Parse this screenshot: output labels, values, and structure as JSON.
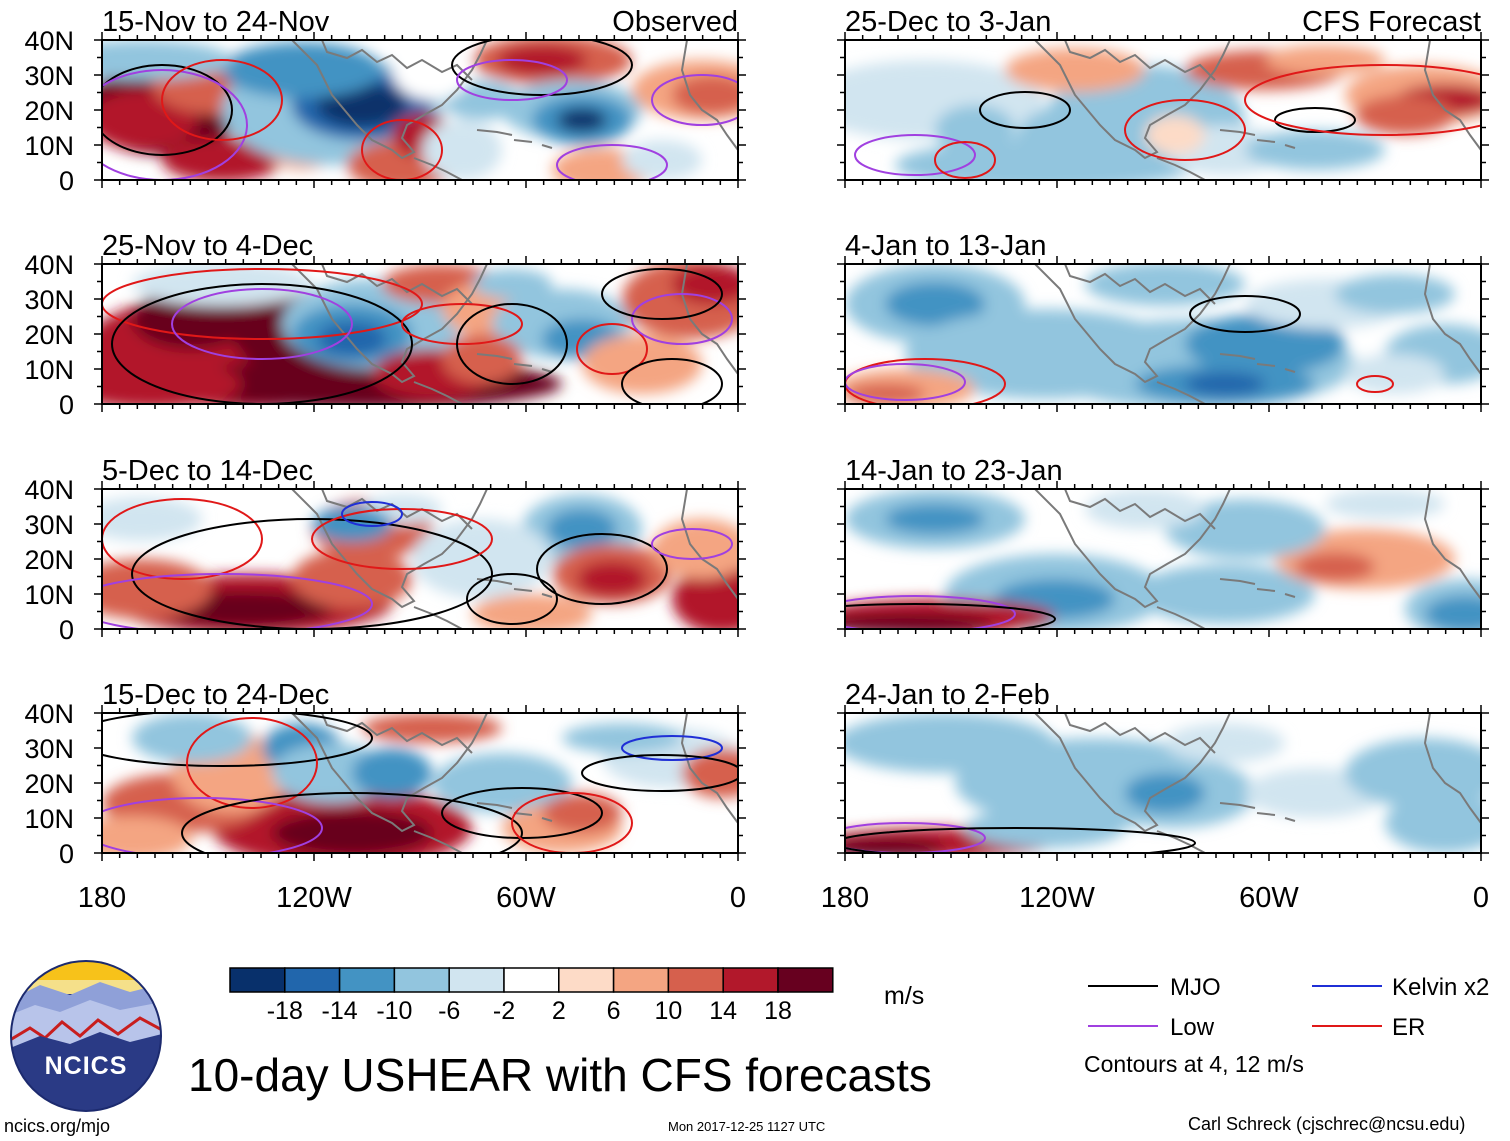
{
  "panels": [
    {
      "title": "15-Nov to 24-Nov",
      "subtitle": "Observed"
    },
    {
      "title": "25-Dec to 3-Jan",
      "subtitle": "CFS Forecast"
    },
    {
      "title": "25-Nov to 4-Dec",
      "subtitle": ""
    },
    {
      "title": "4-Jan to 13-Jan",
      "subtitle": ""
    },
    {
      "title": "5-Dec to 14-Dec",
      "subtitle": ""
    },
    {
      "title": "14-Jan to 23-Jan",
      "subtitle": ""
    },
    {
      "title": "15-Dec to 24-Dec",
      "subtitle": ""
    },
    {
      "title": "24-Jan to 2-Feb",
      "subtitle": ""
    }
  ],
  "lat_labels": [
    "40N",
    "30N",
    "20N",
    "10N",
    "0"
  ],
  "lon_labels": [
    "180",
    "120W",
    "60W",
    "0"
  ],
  "colorbar": {
    "labels": [
      "-18",
      "-14",
      "-10",
      "-6",
      "-2",
      "2",
      "6",
      "10",
      "14",
      "18"
    ],
    "units": "m/s",
    "colors": [
      "#08306b",
      "#2166ac",
      "#4393c3",
      "#92c5de",
      "#d1e5f0",
      "#ffffff",
      "#fddbc7",
      "#f4a582",
      "#d6604d",
      "#b2182b",
      "#67001f"
    ]
  },
  "legend": {
    "items": [
      {
        "label": "MJO",
        "color": "#000000"
      },
      {
        "label": "Kelvin x2",
        "color": "#1f2fd6"
      },
      {
        "label": "Low",
        "color": "#a040e0"
      },
      {
        "label": "ER",
        "color": "#e01818"
      }
    ],
    "contour_note": "Contours at 4, 12 m/s"
  },
  "title": "10-day USHEAR with CFS forecasts",
  "logo_text": "NCICS",
  "footer": {
    "site": "ncics.org/mjo",
    "timestamp": "Mon 2017-12-25 1127 UTC",
    "author": "Carl Schreck (cjschrec@ncsu.edu)"
  }
}
